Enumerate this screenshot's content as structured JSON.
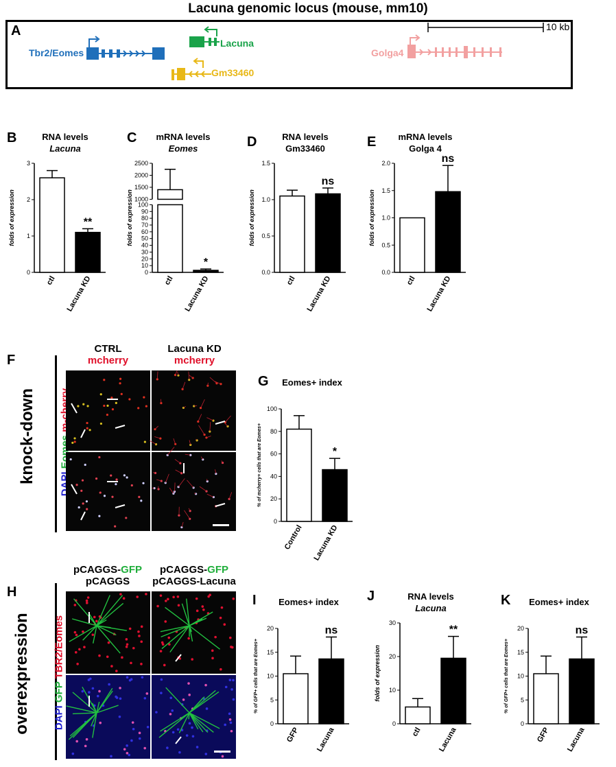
{
  "figure": {
    "title": "Lacuna genomic locus (mouse, mm10)",
    "panel_labels": {
      "A": "A",
      "B": "B",
      "C": "C",
      "D": "D",
      "E": "E",
      "F": "F",
      "G": "G",
      "H": "H",
      "I": "I",
      "J": "J",
      "K": "K"
    },
    "locus": {
      "scale_label": "10 kb",
      "genes": [
        {
          "name": "Tbr2/Eomes",
          "color": "#1f6fba"
        },
        {
          "name": "Lacuna",
          "color": "#1aa34a"
        },
        {
          "name": "Gm33460",
          "color": "#e8b817"
        },
        {
          "name": "Golga4",
          "color": "#f2a0a0"
        }
      ]
    },
    "knockdown": {
      "side_label": "knock-down",
      "stain_label": {
        "dapi": "DAPI",
        "eomes": " Eomes",
        "mcherry": " m-cherry"
      },
      "col1": {
        "line1": "CTRL",
        "line2": "mcherry"
      },
      "col2": {
        "line1": "Lacuna KD",
        "line2": "mcherry"
      }
    },
    "overexpression": {
      "side_label": "overexpression",
      "stain_label": {
        "dapi": "DAPI",
        "gfp": " GFP",
        "tbr2": " TBR2/Eomes"
      },
      "col1": {
        "line1a": "pCAGGS-",
        "line1b": "GFP",
        "line2": "pCAGGS"
      },
      "col2": {
        "line1a": "pCAGGS-",
        "line1b": "GFP",
        "line2": "pCAGGS-Lacuna"
      }
    },
    "colors": {
      "white_bar": "#ffffff",
      "black_bar": "#000000",
      "red_label": "#e0102a",
      "green_label": "#1fae3a",
      "blue_label": "#2020d0"
    }
  },
  "chart_data": [
    {
      "id": "B",
      "type": "bar",
      "title": "RNA levels",
      "subtitle": "Lacuna",
      "ylabel": "folds of expression",
      "categories": [
        "ctl",
        "Lacuna KD"
      ],
      "values": [
        2.6,
        1.1
      ],
      "errors": [
        0.2,
        0.1
      ],
      "ylim": [
        0,
        3
      ],
      "yticks": [
        "0",
        "1",
        "2",
        "3"
      ],
      "annotations": [
        "",
        "**"
      ]
    },
    {
      "id": "C",
      "type": "bar",
      "title": "mRNA levels",
      "subtitle": "Eomes",
      "ylabel": "folds of expression",
      "categories": [
        "ctl",
        "Lacuna KD"
      ],
      "values": [
        1400,
        3
      ],
      "errors": [
        850,
        2
      ],
      "yticks": [
        "0",
        "10",
        "20",
        "30",
        "40",
        "50",
        "60",
        "70",
        "80",
        "90",
        "100",
        "1000",
        "1500",
        "2000",
        "2500"
      ],
      "annotations": [
        "",
        "*"
      ]
    },
    {
      "id": "D",
      "type": "bar",
      "title": "RNA levels",
      "subtitle": "Gm33460",
      "ylabel": "folds of expression",
      "categories": [
        "ctl",
        "Lacuna KD"
      ],
      "values": [
        1.05,
        1.08
      ],
      "errors": [
        0.08,
        0.08
      ],
      "ylim": [
        0,
        1.5
      ],
      "yticks": [
        "0.0",
        "0.5",
        "1.0",
        "1.5"
      ],
      "annotations": [
        "",
        "ns"
      ]
    },
    {
      "id": "E",
      "type": "bar",
      "title": "mRNA levels",
      "subtitle": "Golga 4",
      "ylabel": "folds of expression",
      "categories": [
        "ctl",
        "Lacuna KD"
      ],
      "values": [
        1.0,
        1.48
      ],
      "errors": [
        0,
        0.48
      ],
      "ylim": [
        0,
        2.0
      ],
      "yticks": [
        "0.0",
        "0.5",
        "1.0",
        "1.5",
        "2.0"
      ],
      "annotations": [
        "",
        "ns"
      ]
    },
    {
      "id": "G",
      "type": "bar",
      "title": "Eomes+ index",
      "ylabel": "% of mcherry+ cells that are Eomes+",
      "categories": [
        "Control",
        "Lacuna KD"
      ],
      "values": [
        82,
        46
      ],
      "errors": [
        12,
        10
      ],
      "ylim": [
        0,
        100
      ],
      "yticks": [
        "0",
        "20",
        "40",
        "60",
        "80",
        "100"
      ],
      "annotations": [
        "",
        "*"
      ]
    },
    {
      "id": "I",
      "type": "bar",
      "title": "Eomes+ index",
      "ylabel": "% of GFP+ cells that are Eomes+",
      "categories": [
        "GFP",
        "Lacuna"
      ],
      "values": [
        10.5,
        13.6
      ],
      "errors": [
        3.7,
        4.6
      ],
      "ylim": [
        0,
        20
      ],
      "yticks": [
        "0",
        "5",
        "10",
        "15",
        "20"
      ],
      "annotations": [
        "",
        "ns"
      ]
    },
    {
      "id": "J",
      "type": "bar",
      "title": "RNA levels",
      "subtitle": "Lacuna",
      "ylabel": "folds of expression",
      "categories": [
        "ctl",
        "Lacuna"
      ],
      "values": [
        5,
        19.5
      ],
      "errors": [
        2.5,
        6.5
      ],
      "ylim": [
        0,
        30
      ],
      "yticks": [
        "0",
        "10",
        "20",
        "30"
      ],
      "annotations": [
        "",
        "**"
      ]
    },
    {
      "id": "K",
      "type": "bar",
      "title": "Eomes+ index",
      "ylabel": "% of GFP+ cells that are Eomes+",
      "categories": [
        "GFP",
        "Lacuna"
      ],
      "values": [
        10.5,
        13.6
      ],
      "errors": [
        3.7,
        4.6
      ],
      "ylim": [
        0,
        20
      ],
      "yticks": [
        "0",
        "5",
        "10",
        "15",
        "20"
      ],
      "annotations": [
        "",
        "ns"
      ]
    }
  ]
}
